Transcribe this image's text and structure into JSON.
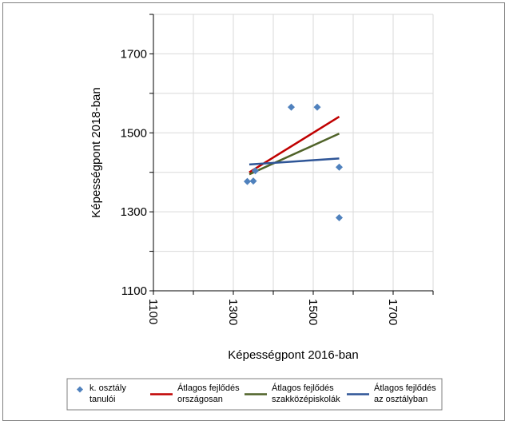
{
  "chart_data": {
    "type": "scatter",
    "xlabel": "Képességpont 2016-ban",
    "ylabel": "Képességpont 2018-ban",
    "xlim": [
      1100,
      1800
    ],
    "ylim": [
      1100,
      1800
    ],
    "x_ticks": [
      1100,
      1300,
      1500,
      1700
    ],
    "y_ticks": [
      1100,
      1300,
      1500,
      1700
    ],
    "x_tick_labels": [
      "1100",
      "1300",
      "1500",
      "1700"
    ],
    "y_tick_labels": [
      "1100",
      "1300",
      "1500",
      "1700"
    ],
    "grid": true,
    "legend_position": "bottom",
    "series": [
      {
        "name": "k. osztály tanulói",
        "kind": "scatter",
        "marker": "diamond",
        "color": "#4F81BD",
        "points": [
          [
            1335,
            1377
          ],
          [
            1350,
            1378
          ],
          [
            1355,
            1404
          ],
          [
            1445,
            1565
          ],
          [
            1510,
            1565
          ],
          [
            1565,
            1413
          ],
          [
            1565,
            1285
          ]
        ]
      },
      {
        "name": "Átlagos fejlődés országosan",
        "kind": "line",
        "color": "#C00000",
        "points": [
          [
            1340,
            1400
          ],
          [
            1565,
            1541
          ]
        ]
      },
      {
        "name": "Átlagos fejlődés szakközépiskolák",
        "kind": "line",
        "color": "#4F6228",
        "points": [
          [
            1340,
            1395
          ],
          [
            1565,
            1498
          ]
        ]
      },
      {
        "name": "Átlagos fejlődés az osztályban",
        "kind": "line",
        "color": "#2E5597",
        "points": [
          [
            1340,
            1420
          ],
          [
            1565,
            1435
          ]
        ]
      }
    ],
    "legend": [
      {
        "line1": "k. osztály",
        "line2": "tanulói"
      },
      {
        "line1": "Átlagos fejlődés",
        "line2": "országosan"
      },
      {
        "line1": "Átlagos fejlődés",
        "line2": "szakközépiskolák"
      },
      {
        "line1": "Átlagos fejlődés",
        "line2": "az osztályban"
      }
    ]
  }
}
